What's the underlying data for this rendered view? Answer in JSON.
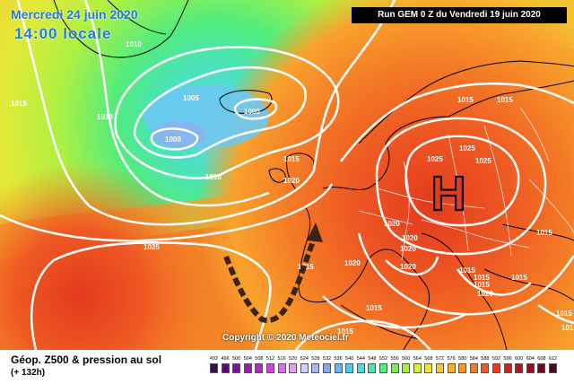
{
  "header": {
    "date_label": "Mercredi 24 juin 2020",
    "time_label": "14:00 locale",
    "run_label": "Run GEM 0 Z du Vendredi 19 juin 2020"
  },
  "copyright": "Copyright © 2020 Meteociel.fr",
  "footer": {
    "title": "Géop. Z500 & pression au sol",
    "subtitle": "(+ 132h)"
  },
  "pressure_labels": [
    "1010",
    "1015",
    "1010",
    "1005",
    "1000",
    "1000",
    "1010",
    "1015",
    "1020",
    "1025",
    "1025",
    "1025",
    "1025",
    "1015",
    "1015",
    "1020",
    "1020",
    "1020",
    "1020",
    "1020",
    "1015",
    "1015",
    "1015",
    "1015",
    "1015",
    "1020",
    "1015",
    "1015",
    "1015",
    "1015",
    "1015"
  ],
  "high_symbol": "H",
  "legend": {
    "values": [
      "492",
      "496",
      "500",
      "504",
      "508",
      "512",
      "516",
      "520",
      "524",
      "528",
      "532",
      "536",
      "540",
      "544",
      "548",
      "552",
      "556",
      "560",
      "564",
      "568",
      "572",
      "576",
      "580",
      "584",
      "588",
      "592",
      "596",
      "600",
      "604",
      "608",
      "612"
    ],
    "colors": [
      "#3a0a4a",
      "#5a0c6e",
      "#7a1490",
      "#9a1cb0",
      "#b426c8",
      "#d640dc",
      "#e06ce6",
      "#ea9cf0",
      "#d0d0f8",
      "#aab8f0",
      "#8aa8f0",
      "#6ab4f2",
      "#4ccaf2",
      "#44dede",
      "#40e8b0",
      "#50ee80",
      "#78f050",
      "#a8f040",
      "#d4ee3a",
      "#f0e436",
      "#f8c832",
      "#fab02e",
      "#f8962a",
      "#f47a26",
      "#ee5a22",
      "#e43a1e",
      "#d2201a",
      "#b4141c",
      "#901020",
      "#6c0c20",
      "#4a081c"
    ]
  },
  "colors": {
    "header_text": "#2a7bd6",
    "isobar": "#ffffff",
    "coastline": "#000000",
    "arrow": "#3a2418"
  }
}
